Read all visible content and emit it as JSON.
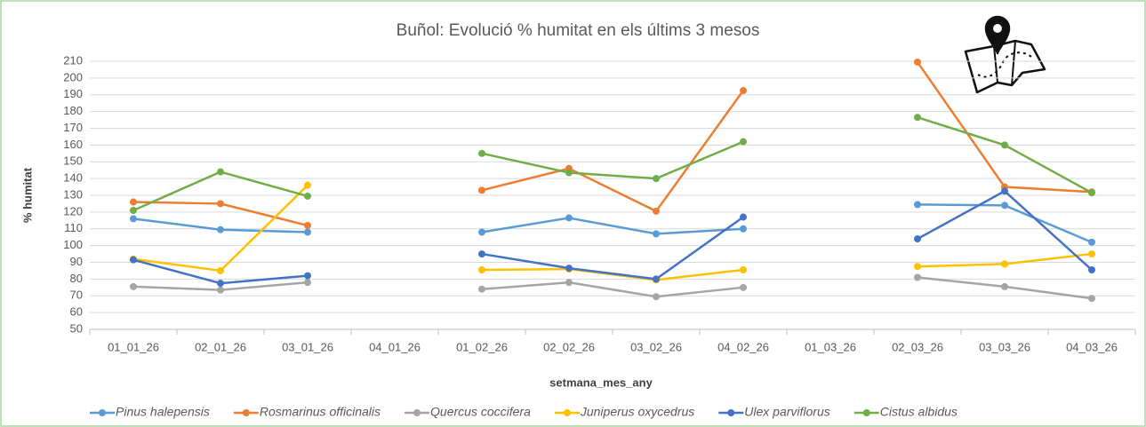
{
  "chart_data": {
    "type": "line",
    "title": "Buñol: Evolució % humitat en els últims 3 mesos",
    "x_label": "setmana_mes_any",
    "y_label": "% humitat",
    "categories": [
      "01_01_26",
      "02_01_26",
      "03_01_26",
      "04_01_26",
      "01_02_26",
      "02_02_26",
      "03_02_26",
      "04_02_26",
      "01_03_26",
      "02_03_26",
      "03_03_26",
      "04_03_26"
    ],
    "ylim": [
      50,
      210
    ],
    "yticks": [
      50,
      60,
      70,
      80,
      90,
      100,
      110,
      120,
      130,
      140,
      150,
      160,
      170,
      180,
      190,
      200,
      210
    ],
    "grid": true,
    "legend": "bottom",
    "series": [
      {
        "name": "Pinus halepensis",
        "color": "#5b9bd5",
        "values": [
          116,
          109.5,
          108,
          null,
          108,
          116.5,
          107,
          110,
          null,
          124.5,
          124,
          102
        ]
      },
      {
        "name": "Rosmarinus officinalis",
        "color": "#ed7d31",
        "values": [
          126,
          125,
          112,
          null,
          133,
          146,
          120.5,
          192.5,
          null,
          209.5,
          135,
          132
        ]
      },
      {
        "name": "Quercus coccifera",
        "color": "#a5a5a5",
        "values": [
          75.5,
          73.5,
          78,
          null,
          74,
          78,
          69.5,
          75,
          null,
          81,
          75.5,
          68.5
        ]
      },
      {
        "name": "Juniperus oxycedrus",
        "color": "#ffc000",
        "values": [
          92,
          85,
          136,
          null,
          85.5,
          86,
          79.5,
          85.5,
          null,
          87.5,
          89,
          95
        ]
      },
      {
        "name": "Ulex parviflorus",
        "color": "#4472c4",
        "values": [
          91.5,
          77.5,
          82,
          null,
          95,
          86.5,
          80,
          117,
          null,
          104,
          132.5,
          85.5
        ]
      },
      {
        "name": "Cistus albidus",
        "color": "#70ad47",
        "values": [
          121,
          144,
          129.5,
          null,
          155,
          143.5,
          140,
          162,
          null,
          176.5,
          160,
          131.5
        ]
      }
    ]
  }
}
